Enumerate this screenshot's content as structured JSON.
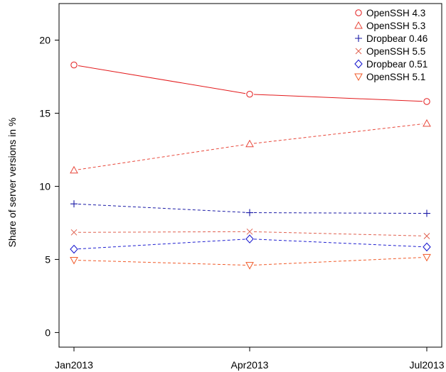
{
  "chart_data": {
    "type": "line",
    "title": "",
    "xlabel": "",
    "ylabel": "Share of server versions in %",
    "categories": [
      "Jan2013",
      "Apr2013",
      "Jul2013"
    ],
    "ylim": [
      -1,
      22.5
    ],
    "yticks": [
      0,
      5,
      10,
      15,
      20
    ],
    "grid": false,
    "legend_position": "top-right",
    "series": [
      {
        "name": "OpenSSH 4.3",
        "values": [
          18.3,
          16.3,
          15.8
        ],
        "color": "#e31a1c",
        "marker": "circle",
        "line": "solid"
      },
      {
        "name": "OpenSSH 5.3",
        "values": [
          11.1,
          12.9,
          14.3
        ],
        "color": "#e8473a",
        "marker": "triangle-up",
        "line": "dashed"
      },
      {
        "name": "Dropbear 0.46",
        "values": [
          8.8,
          8.2,
          8.15
        ],
        "color": "#1a1aa6",
        "marker": "plus",
        "line": "dashed"
      },
      {
        "name": "OpenSSH 5.5",
        "values": [
          6.85,
          6.9,
          6.6
        ],
        "color": "#e0604f",
        "marker": "cross",
        "line": "dashed"
      },
      {
        "name": "Dropbear 0.51",
        "values": [
          5.7,
          6.4,
          5.85
        ],
        "color": "#1f1fd0",
        "marker": "diamond",
        "line": "dashed"
      },
      {
        "name": "OpenSSH 5.1",
        "values": [
          4.95,
          4.6,
          5.15
        ],
        "color": "#f05a28",
        "marker": "triangle-down",
        "line": "dashed"
      }
    ]
  }
}
